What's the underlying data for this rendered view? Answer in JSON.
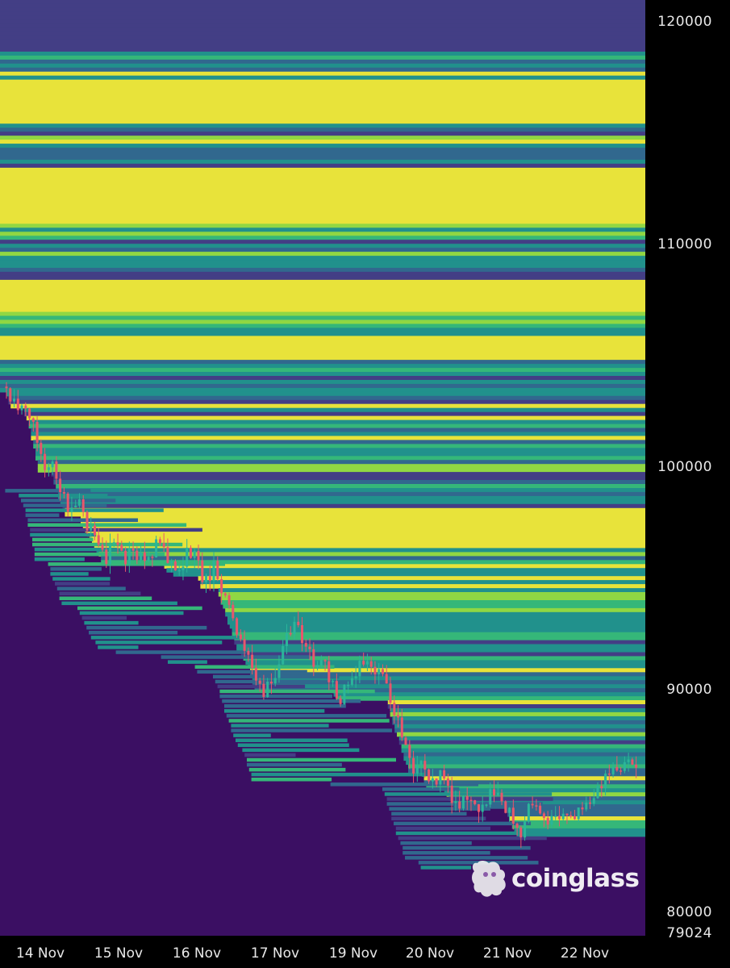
{
  "chart_data": {
    "type": "heatmap",
    "title": "",
    "y_axis": {
      "ticks": [
        "120000",
        "110000",
        "100000",
        "90000",
        "80000",
        "79024"
      ],
      "range": [
        79024,
        121000
      ]
    },
    "x_axis": {
      "ticks": [
        "14 Nov",
        "15 Nov",
        "16 Nov",
        "17 Nov",
        "19 Nov",
        "20 Nov",
        "21 Nov",
        "22 Nov"
      ]
    },
    "colorscale": [
      "#3b0f63",
      "#433e85",
      "#31688e",
      "#21918c",
      "#35b779",
      "#90d743",
      "#e8e33a"
    ],
    "price_series": [
      [
        0.0,
        103600
      ],
      [
        0.02,
        102800
      ],
      [
        0.04,
        103100
      ],
      [
        0.06,
        101800
      ],
      [
        0.08,
        99900
      ],
      [
        0.1,
        100300
      ],
      [
        0.12,
        98900
      ],
      [
        0.14,
        97900
      ],
      [
        0.16,
        98300
      ],
      [
        0.18,
        97300
      ],
      [
        0.2,
        96600
      ],
      [
        0.22,
        95800
      ],
      [
        0.24,
        96800
      ],
      [
        0.26,
        95700
      ],
      [
        0.28,
        96400
      ],
      [
        0.3,
        95800
      ],
      [
        0.32,
        96100
      ],
      [
        0.34,
        96900
      ],
      [
        0.36,
        95500
      ],
      [
        0.38,
        95200
      ],
      [
        0.4,
        96200
      ],
      [
        0.42,
        95800
      ],
      [
        0.44,
        94700
      ],
      [
        0.46,
        95600
      ],
      [
        0.48,
        94300
      ],
      [
        0.5,
        93100
      ],
      [
        0.52,
        91800
      ],
      [
        0.54,
        91300
      ],
      [
        0.56,
        89900
      ],
      [
        0.58,
        90100
      ],
      [
        0.6,
        90800
      ],
      [
        0.62,
        92400
      ],
      [
        0.64,
        93000
      ],
      [
        0.66,
        92100
      ],
      [
        0.68,
        91200
      ],
      [
        0.7,
        91500
      ],
      [
        0.72,
        90200
      ],
      [
        0.74,
        89600
      ],
      [
        0.76,
        90400
      ],
      [
        0.78,
        91000
      ],
      [
        0.8,
        91300
      ],
      [
        0.82,
        90900
      ],
      [
        0.84,
        90300
      ],
      [
        0.86,
        88800
      ],
      [
        0.88,
        87600
      ],
      [
        0.9,
        86300
      ],
      [
        0.92,
        86800
      ],
      [
        0.94,
        85600
      ],
      [
        0.96,
        86200
      ],
      [
        0.98,
        85400
      ],
      [
        1.0,
        84700
      ],
      [
        1.02,
        85000
      ],
      [
        1.04,
        84700
      ],
      [
        1.06,
        85100
      ],
      [
        1.08,
        85300
      ],
      [
        1.1,
        84900
      ],
      [
        1.12,
        84400
      ],
      [
        1.14,
        83400
      ],
      [
        1.16,
        85200
      ],
      [
        1.18,
        84600
      ],
      [
        1.2,
        83900
      ],
      [
        1.22,
        84500
      ],
      [
        1.24,
        84200
      ],
      [
        1.26,
        84300
      ],
      [
        1.28,
        85000
      ],
      [
        1.3,
        85100
      ],
      [
        1.32,
        85700
      ],
      [
        1.34,
        86400
      ],
      [
        1.36,
        86100
      ],
      [
        1.38,
        86800
      ],
      [
        1.4,
        86500
      ]
    ]
  },
  "watermark": {
    "text": "coinglass",
    "icon": "coinglass-logo-icon"
  }
}
